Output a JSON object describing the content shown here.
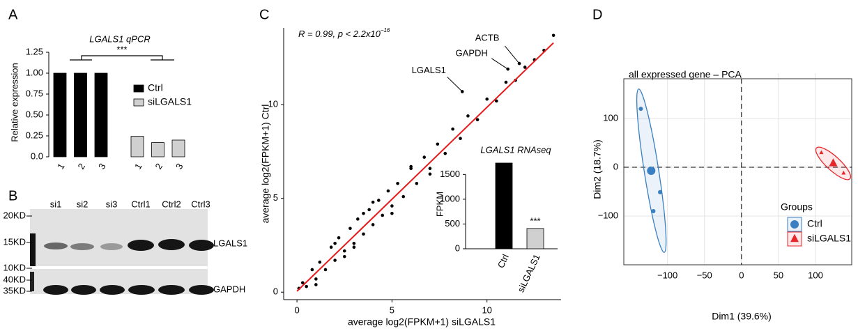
{
  "panel_labels": [
    "A",
    "B",
    "C",
    "D"
  ],
  "blot": {
    "lanes": [
      "si1",
      "si2",
      "si3",
      "Ctrl1",
      "Ctrl2",
      "Ctrl3"
    ],
    "markers": [
      "20KD",
      "15KD",
      "10KD",
      "40KD",
      "35KD"
    ],
    "proteins": [
      "LGALS1",
      "GAPDH"
    ]
  },
  "chart_data": [
    {
      "type": "bar",
      "title": "LGALS1 qPCR",
      "y_label": "Relative expression",
      "annotation": "***",
      "categories": [
        "1",
        "2",
        "3"
      ],
      "series": [
        {
          "name": "Ctrl",
          "color": "#000000",
          "values": [
            1,
            1,
            1
          ]
        },
        {
          "name": "siLGALS1",
          "color": "#d0d0d0",
          "values": [
            0.245,
            0.17,
            0.2
          ]
        }
      ],
      "ylim": [
        0,
        1.3
      ],
      "yticks": [
        {
          "value": 0,
          "label": "0.0"
        },
        0.25,
        {
          "value": 0.5,
          "label": "0.50"
        },
        {
          "value": 0.75,
          "label": "0.75"
        },
        {
          "value": 1,
          "label": "1.00"
        },
        1.25
      ]
    },
    {
      "type": "scatter",
      "x_label": "average log2(FPKM+1) siLGALS1",
      "y_label": "average log2(FPKM+1) Ctrl",
      "annotation": {
        "text": "R = 0.99, p < 2.2x10",
        "exponent": "−16"
      },
      "color": "#000000",
      "x": [
        0.1,
        0.3,
        0.5,
        0.8,
        1.0,
        1.2,
        1.5,
        1.8,
        2.0,
        2.2,
        2.5,
        2.8,
        3.0,
        3.2,
        3.5,
        3.8,
        4.0,
        4.3,
        4.5,
        4.8,
        5.0,
        5.3,
        5.6,
        6.0,
        6.3,
        6.7,
        7.0,
        7.4,
        7.8,
        8.2,
        8.6,
        9.0,
        9.5,
        10.0,
        10.5,
        11.0,
        11.5,
        12.0,
        12.5,
        13.0,
        13.5,
        1.0,
        2.0,
        3.0,
        4.0,
        5.0,
        6.0,
        7.0,
        2.5,
        3.5
      ],
      "y": [
        0.2,
        0.5,
        0.3,
        1.2,
        0.7,
        1.6,
        1.2,
        2.4,
        1.7,
        2.9,
        2.2,
        3.4,
        2.6,
        3.9,
        3.1,
        4.4,
        3.6,
        4.9,
        4.1,
        5.4,
        4.6,
        5.8,
        5.1,
        6.6,
        5.8,
        7.2,
        6.6,
        7.9,
        7.4,
        8.7,
        8.2,
        9.4,
        9.2,
        10.3,
        10.2,
        11.2,
        11.3,
        12.0,
        12.4,
        12.9,
        13.7,
        0.4,
        2.6,
        2.4,
        4.8,
        4.2,
        6.7,
        6.3,
        1.9,
        4.2
      ],
      "labeled_points": [
        {
          "label": "LGALS1",
          "x": 8.7,
          "y": 10.7
        },
        {
          "label": "ACTB",
          "x": 11.7,
          "y": 12.2
        },
        {
          "label": "GAPDH",
          "x": 11.1,
          "y": 11.9
        }
      ],
      "fit": {
        "color": "#e41a1c",
        "x": [
          0,
          13.5
        ],
        "y": [
          0.05,
          13.3
        ]
      },
      "xlim": [
        -0.7,
        13.9
      ],
      "ylim": [
        -0.4,
        14.1
      ],
      "xticks": [
        0,
        5,
        10
      ],
      "yticks": [
        0,
        5,
        10
      ]
    },
    {
      "type": "bar",
      "title": "LGALS1 RNAseq",
      "y_label": "FPKM",
      "annotation": "***",
      "categories": [
        "Ctrl",
        "siLGALS1"
      ],
      "values": [
        1730,
        410
      ],
      "colors": [
        "#000000",
        "#d0d0d0"
      ],
      "ylim": [
        0,
        1800
      ],
      "yticks": [
        0,
        500,
        1000,
        1500
      ]
    },
    {
      "type": "scatter",
      "title": "all expressed gene – PCA",
      "x_label": "Dim1 (39.6%)",
      "y_label": "Dim2 (18.7%)",
      "legend_title": "Groups",
      "grid": true,
      "series": [
        {
          "name": "Ctrl",
          "color": "#3a7fc1",
          "marker": "circle",
          "x": [
            -136,
            -110,
            -119
          ],
          "y": [
            120,
            -51,
            -90
          ],
          "centroid": [
            -122,
            -7
          ]
        },
        {
          "name": "siLGALS1",
          "color": "#e8262a",
          "marker": "triangle",
          "x": [
            108,
            126,
            138
          ],
          "y": [
            30,
            6,
            -12
          ],
          "centroid": [
            124,
            8
          ]
        }
      ],
      "xlim": [
        -159,
        149
      ],
      "ylim": [
        -200,
        193
      ],
      "xticks": [
        {
          "value": -100,
          "label": "−100"
        },
        {
          "value": -50,
          "label": "−50"
        },
        0,
        50,
        100
      ],
      "yticks": [
        {
          "value": -100,
          "label": "−100"
        },
        0,
        100
      ]
    }
  ]
}
